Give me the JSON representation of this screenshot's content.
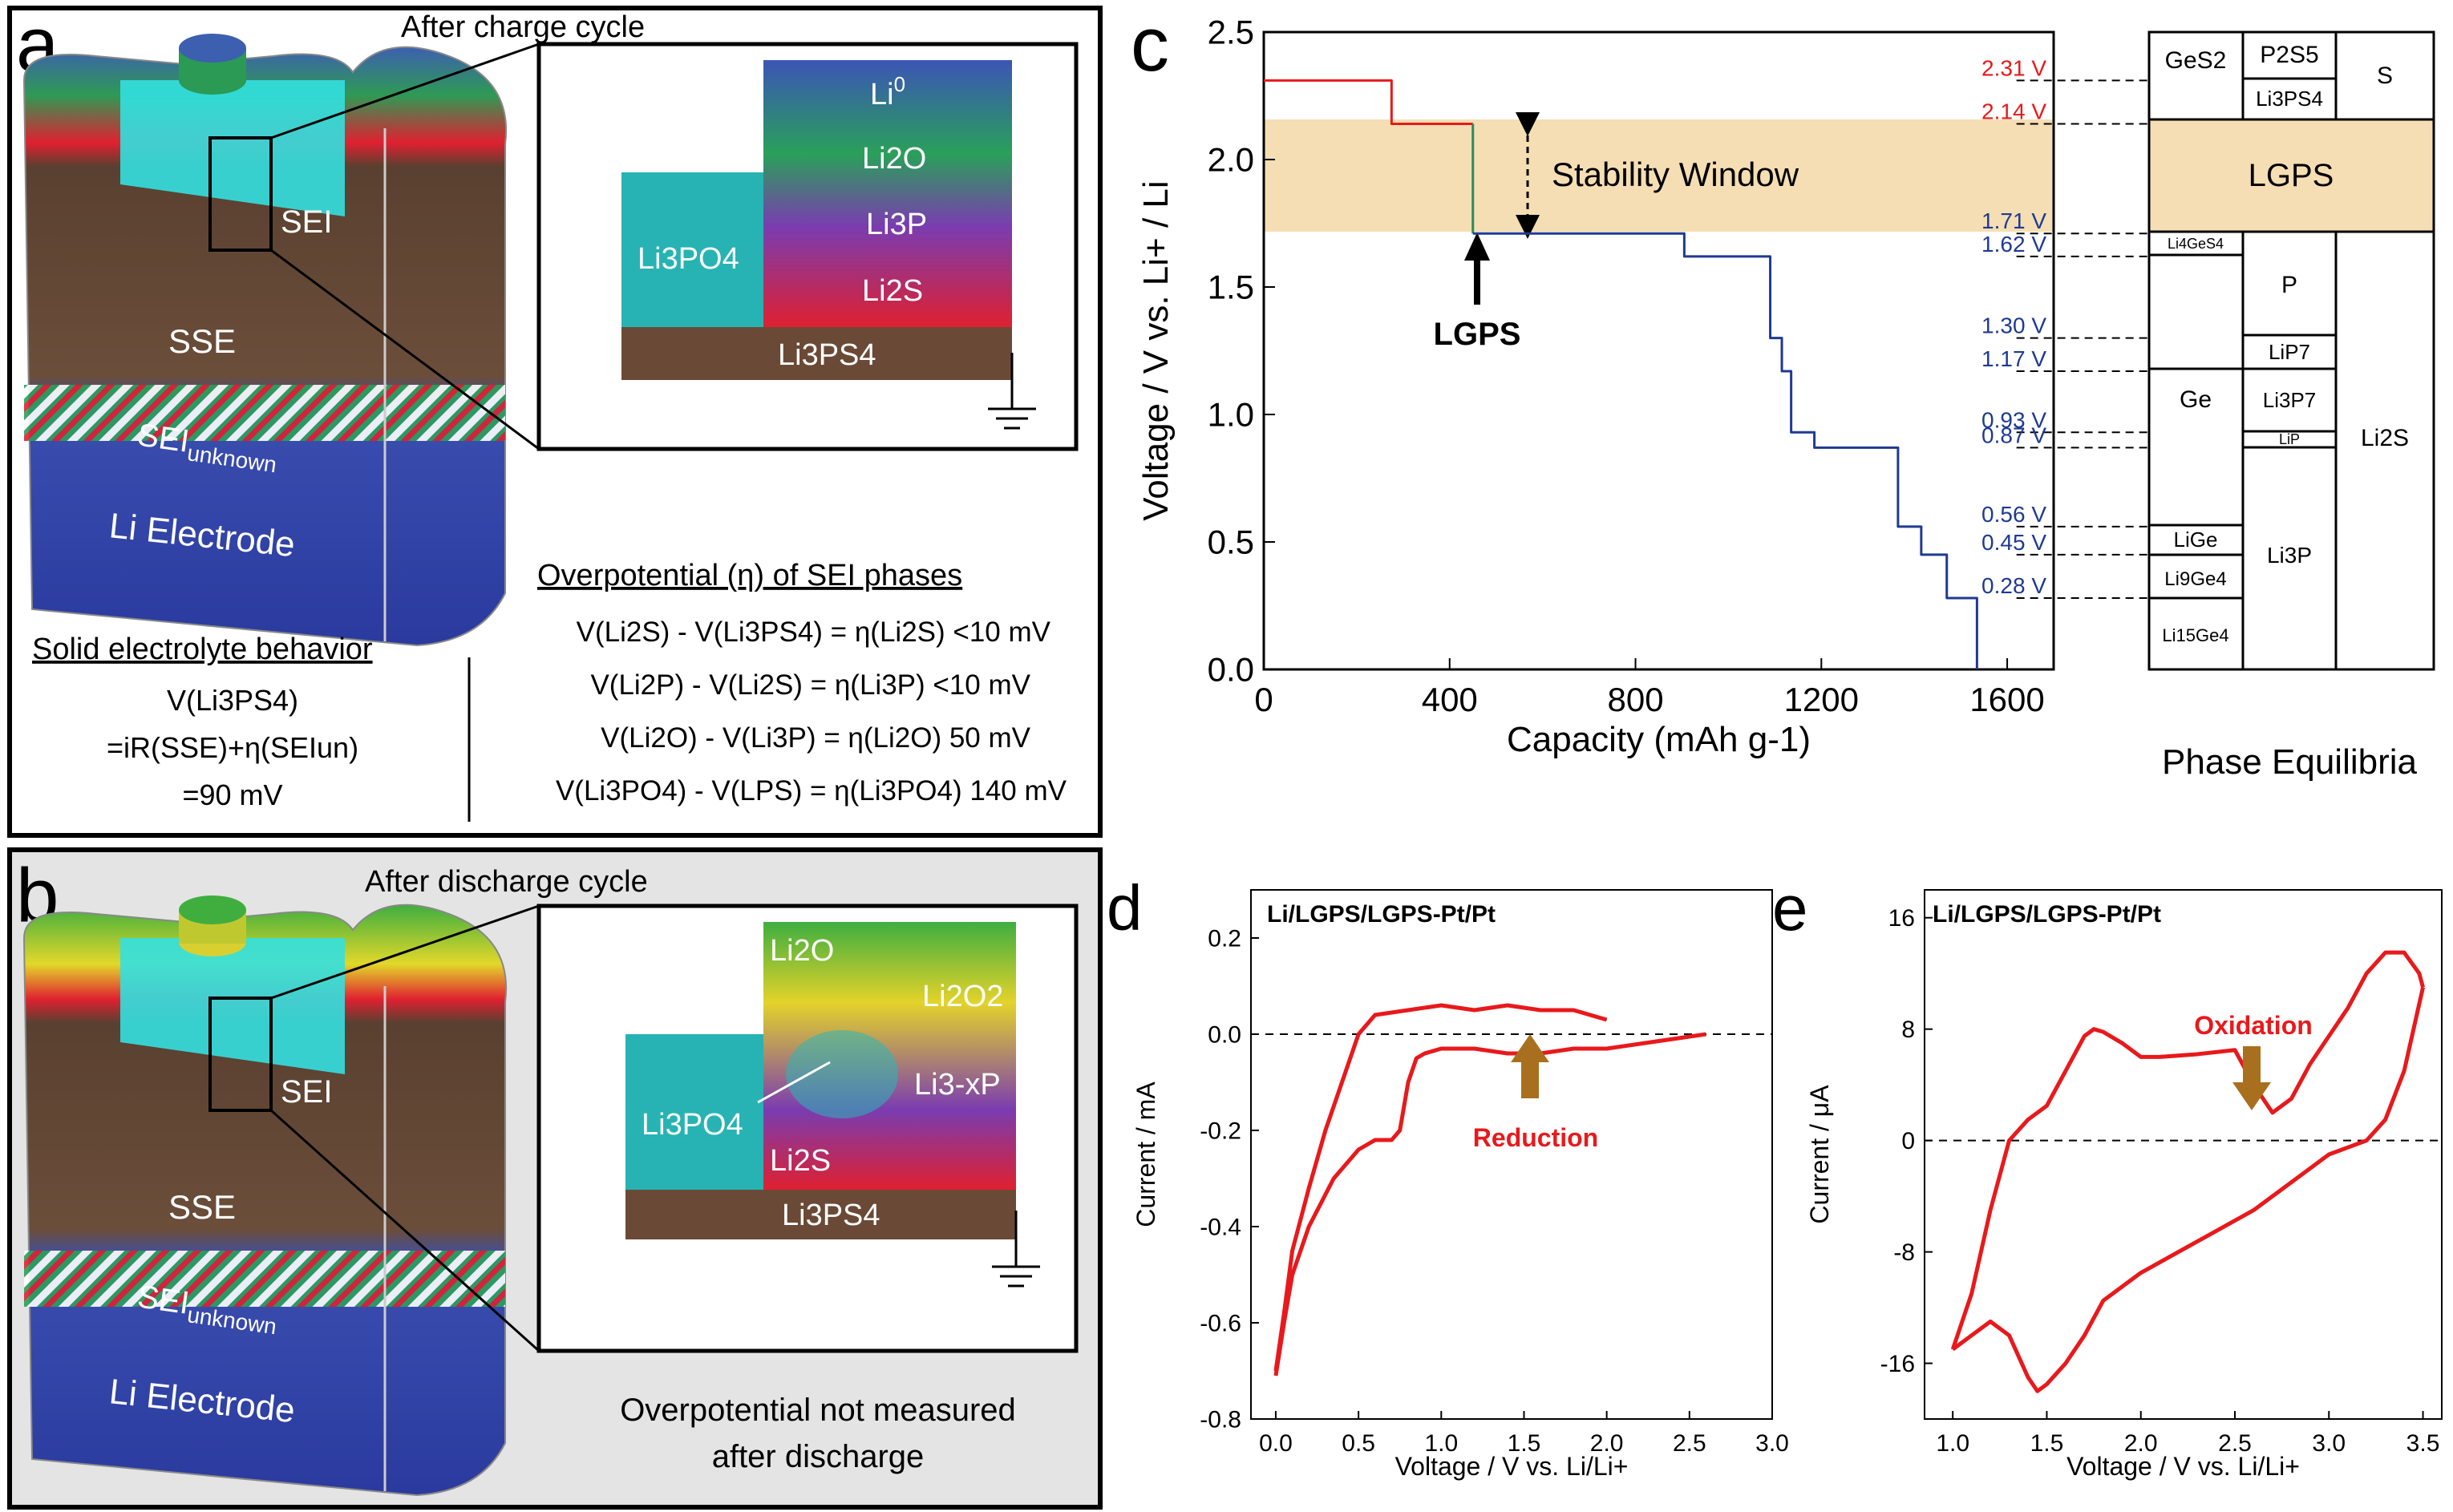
{
  "panel_a": {
    "letter": "a",
    "title": "After charge cycle",
    "cell_labels": {
      "sei": "SEI",
      "sse": "SSE",
      "sei_unknown": "SEI",
      "sei_unknown_sub": "unknown",
      "li_electrode": "Li Electrode"
    },
    "inset": {
      "li0": "Li",
      "li0_sup": "0",
      "li2o": "Li2O",
      "li3p": "Li3P",
      "li2s": "Li2S",
      "li3po4": "Li3PO4",
      "li3ps4": "Li3PS4"
    },
    "solid_heading": "Solid electrolyte behavior",
    "solid_lines": [
      "V(Li3PS4)",
      "=iR(SSE)+η(SEIun)",
      "=90 mV"
    ],
    "overpotential_heading": "Overpotential (η) of SEI phases",
    "overpotential_lines": [
      "V(Li2S) - V(Li3PS4) = η(Li2S) <10 mV",
      "V(Li2P) - V(Li2S) = η(Li3P) <10 mV",
      "V(Li2O) - V(Li3P) = η(Li2O) 50 mV",
      "V(Li3PO4) - V(LPS) = η(Li3PO4) 140 mV"
    ]
  },
  "panel_b": {
    "letter": "b",
    "title": "After discharge cycle",
    "cell_labels": {
      "sei": "SEI",
      "sse": "SSE",
      "sei_unknown": "SEI",
      "sei_unknown_sub": "unknown",
      "li_electrode": "Li Electrode"
    },
    "inset": {
      "li2o": "Li2O",
      "li2o2": "Li2O2",
      "li3xp": "Li3-xP",
      "li2s": "Li2S",
      "li3po4": "Li3PO4",
      "li3ps4": "Li3PS4"
    },
    "note_lines": [
      "Overpotential not measured",
      "after discharge"
    ]
  },
  "panel_c": {
    "letter": "c",
    "stability_window": "Stability Window",
    "arrow_label": "LGPS",
    "phase_title": "Phase Equilibria",
    "phase_cells": {
      "ges2": "GeS2",
      "p2s5": "P2S5",
      "s": "S",
      "li3ps4": "Li3PS4",
      "lgps": "LGPS",
      "li4ges4": "Li4GeS4",
      "p": "P",
      "lip7": "LiP7",
      "ge": "Ge",
      "li3p7": "Li3P7",
      "lip": "LiP",
      "li2s": "Li2S",
      "lige": "LiGe",
      "li3p": "Li3P",
      "li9ge4": "Li9Ge4",
      "li15ge4": "Li15Ge4"
    }
  },
  "panel_d": {
    "letter": "d",
    "cell": "Li/LGPS/LGPS-Pt/Pt",
    "annotation": "Reduction"
  },
  "panel_e": {
    "letter": "e",
    "cell": "Li/LGPS/LGPS-Pt/Pt",
    "annotation": "Oxidation"
  },
  "colors": {
    "red": "#e8191c",
    "blue": "#1f3a93",
    "green": "#2e8b57",
    "stability": "#f5deb3",
    "brown_arrow": "#a8701e",
    "teal": "#27b3b3"
  },
  "chart_data": [
    {
      "type": "line",
      "panel": "c",
      "title": "",
      "xlabel": "Capacity (mAh g-1)",
      "ylabel": "Voltage / V vs. Li+ / Li",
      "xlim": [
        0,
        1700
      ],
      "ylim": [
        0,
        2.5
      ],
      "xticks": [
        0,
        400,
        800,
        1200,
        1600
      ],
      "yticks": [
        0.0,
        0.5,
        1.0,
        1.5,
        2.0,
        2.5
      ],
      "series": [
        {
          "color": "#e8191c",
          "x": [
            0,
            275,
            275,
            450
          ],
          "y": [
            2.31,
            2.31,
            2.14,
            2.14
          ]
        },
        {
          "color": "#2e8b57",
          "x": [
            450,
            450
          ],
          "y": [
            2.14,
            1.71
          ]
        },
        {
          "color": "#1f3a93",
          "x": [
            450,
            905,
            905,
            1090,
            1090,
            1115,
            1115,
            1135,
            1135,
            1185,
            1185,
            1365,
            1365,
            1415,
            1415,
            1470,
            1470,
            1535,
            1535
          ],
          "y": [
            1.71,
            1.71,
            1.62,
            1.62,
            1.3,
            1.3,
            1.17,
            1.17,
            0.93,
            0.93,
            0.87,
            0.87,
            0.56,
            0.56,
            0.45,
            0.45,
            0.28,
            0.28,
            0.0
          ]
        }
      ],
      "annotations": [
        {
          "label": "2.31 V",
          "y": 2.31,
          "color": "#e8191c"
        },
        {
          "label": "2.14 V",
          "y": 2.14,
          "color": "#e8191c"
        },
        {
          "label": "1.71 V",
          "y": 1.71,
          "color": "#1f3a93"
        },
        {
          "label": "1.62 V",
          "y": 1.62,
          "color": "#1f3a93"
        },
        {
          "label": "1.30 V",
          "y": 1.3,
          "color": "#1f3a93"
        },
        {
          "label": "1.17 V",
          "y": 1.17,
          "color": "#1f3a93"
        },
        {
          "label": "0.93 V",
          "y": 0.93,
          "color": "#1f3a93"
        },
        {
          "label": "0.87 V",
          "y": 0.87,
          "color": "#1f3a93"
        },
        {
          "label": "0.56 V",
          "y": 0.56,
          "color": "#1f3a93"
        },
        {
          "label": "0.45 V",
          "y": 0.45,
          "color": "#1f3a93"
        },
        {
          "label": "0.28 V",
          "y": 0.28,
          "color": "#1f3a93"
        }
      ],
      "stability_window": [
        1.71,
        2.14
      ]
    },
    {
      "type": "line",
      "panel": "d",
      "title": "Li/LGPS/LGPS-Pt/Pt",
      "xlabel": "Voltage / V vs. Li/Li+",
      "ylabel": "Current / mA",
      "xlim": [
        -0.15,
        3.0
      ],
      "ylim": [
        -0.8,
        0.3
      ],
      "xticks": [
        0.0,
        0.5,
        1.0,
        1.5,
        2.0,
        2.5,
        3.0
      ],
      "yticks": [
        0.2,
        0,
        -0.2,
        -0.4,
        -0.6,
        -0.8
      ],
      "series": [
        {
          "name": "",
          "color": "#e8191c",
          "x": [
            0.0,
            0.05,
            0.1,
            0.2,
            0.35,
            0.5,
            0.6,
            0.7,
            0.75,
            0.8,
            0.85,
            0.9,
            1.0,
            1.2,
            1.4,
            1.6,
            1.8,
            2.0,
            2.2,
            2.4,
            2.6
          ],
          "y": [
            -0.71,
            -0.6,
            -0.5,
            -0.4,
            -0.3,
            -0.24,
            -0.22,
            -0.22,
            -0.2,
            -0.1,
            -0.05,
            -0.04,
            -0.03,
            -0.03,
            -0.04,
            -0.04,
            -0.03,
            -0.03,
            -0.02,
            -0.01,
            0.0
          ]
        },
        {
          "name": "",
          "color": "#e8191c",
          "x": [
            2.0,
            1.8,
            1.6,
            1.4,
            1.2,
            1.0,
            0.8,
            0.6,
            0.5,
            0.4,
            0.3,
            0.2,
            0.1,
            0.05,
            0.0
          ],
          "y": [
            0.03,
            0.05,
            0.05,
            0.06,
            0.05,
            0.06,
            0.05,
            0.04,
            0.0,
            -0.1,
            -0.2,
            -0.32,
            -0.45,
            -0.58,
            -0.7
          ]
        }
      ]
    },
    {
      "type": "line",
      "panel": "e",
      "title": "Li/LGPS/LGPS-Pt/Pt",
      "xlabel": "Voltage / V vs. Li/Li+",
      "ylabel": "Current / μA",
      "xlim": [
        0.85,
        3.6
      ],
      "ylim": [
        -20,
        18
      ],
      "xticks": [
        1.0,
        1.5,
        2.0,
        2.5,
        3.0,
        3.5
      ],
      "yticks": [
        16,
        8,
        0,
        -8,
        -16
      ],
      "series": [
        {
          "name": "",
          "color": "#e8191c",
          "x": [
            1.0,
            1.1,
            1.2,
            1.3,
            1.4,
            1.5,
            1.6,
            1.7,
            1.75,
            1.8,
            1.9,
            2.0,
            2.1,
            2.3,
            2.5,
            2.6,
            2.7,
            2.8,
            2.9,
            3.0,
            3.1,
            3.2,
            3.3,
            3.4,
            3.48,
            3.5
          ],
          "y": [
            -15,
            -11,
            -5,
            0,
            1.5,
            2.5,
            5,
            7.5,
            8,
            7.8,
            7,
            6,
            6,
            6.2,
            6.5,
            4,
            2,
            3,
            5.5,
            7.5,
            9.5,
            12,
            13.5,
            13.5,
            12,
            11
          ]
        },
        {
          "name": "",
          "color": "#e8191c",
          "x": [
            3.5,
            3.45,
            3.4,
            3.3,
            3.2,
            3.1,
            3.0,
            2.8,
            2.6,
            2.4,
            2.2,
            2.0,
            1.8,
            1.7,
            1.6,
            1.5,
            1.45,
            1.4,
            1.3,
            1.2,
            1.1,
            1.0
          ],
          "y": [
            11,
            8,
            5,
            1.5,
            0,
            -0.5,
            -1,
            -3,
            -5,
            -6.5,
            -8,
            -9.5,
            -11.5,
            -14,
            -16,
            -17.5,
            -18,
            -17,
            -14,
            -13,
            -14,
            -15
          ]
        }
      ]
    }
  ]
}
